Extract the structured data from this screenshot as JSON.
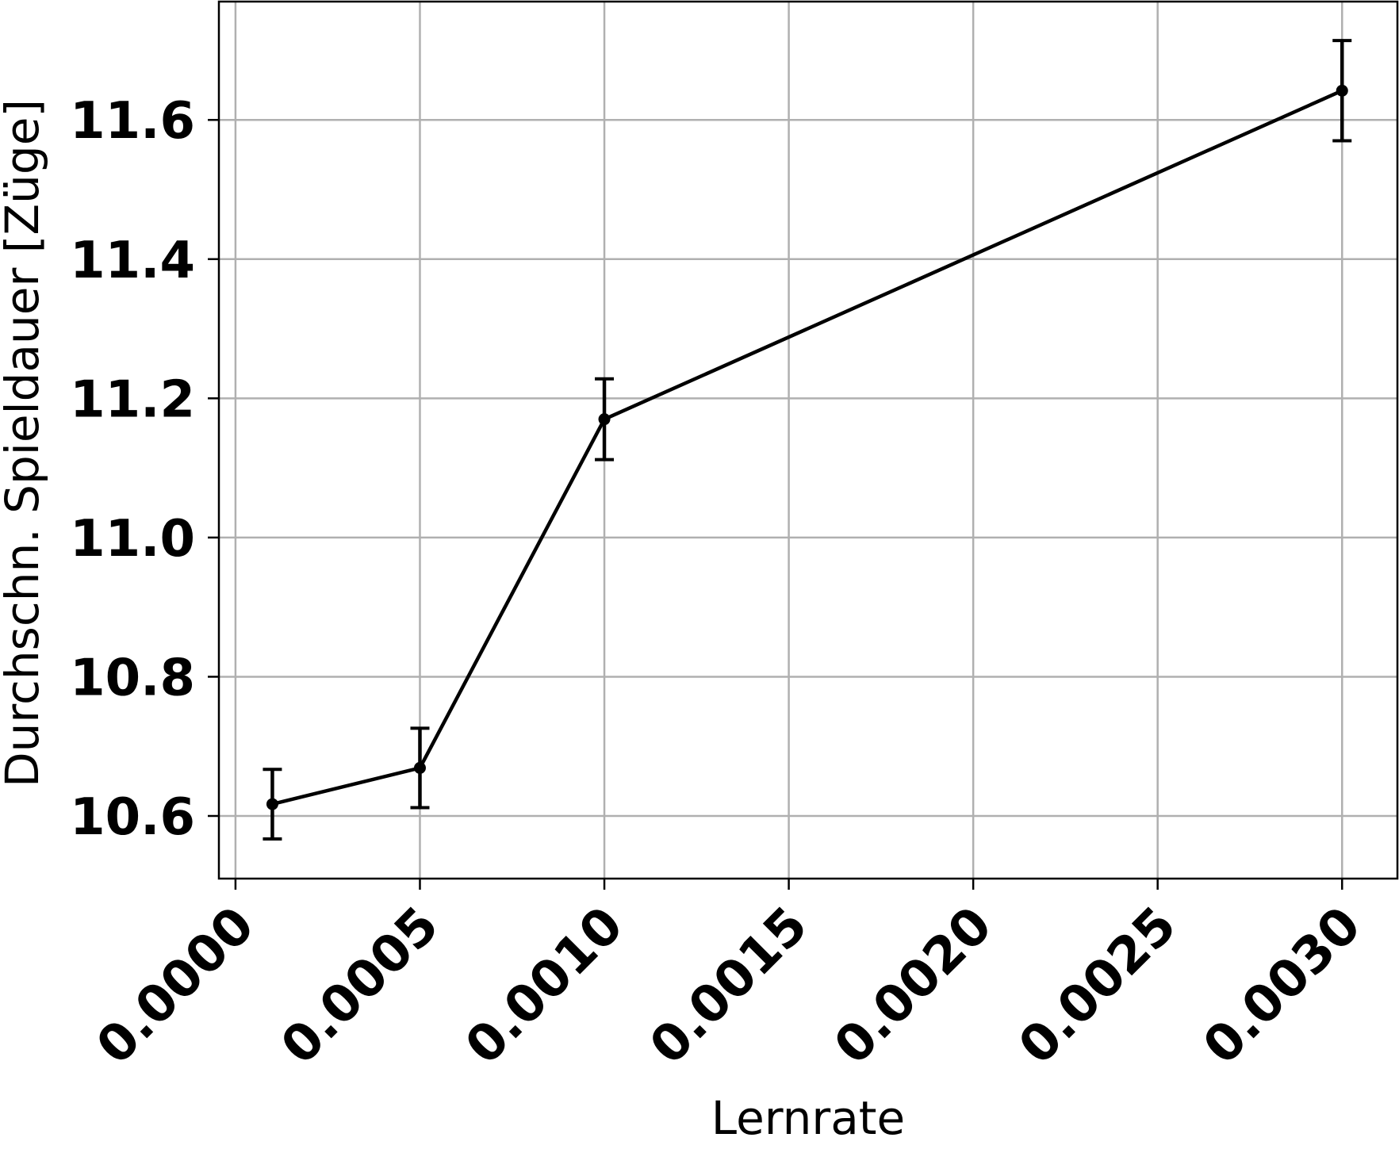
{
  "chart_data": {
    "type": "line",
    "title": "",
    "xlabel": "Lernrate",
    "ylabel": "Durchschn. Spieldauer [Züge]",
    "xlim": [
      -4.5e-05,
      0.00315
    ],
    "ylim": [
      10.51,
      11.77
    ],
    "x_ticks": [
      0.0,
      0.0005,
      0.001,
      0.0015,
      0.002,
      0.0025,
      0.003
    ],
    "x_tick_labels": [
      "0.0000",
      "0.0005",
      "0.0010",
      "0.0015",
      "0.0020",
      "0.0025",
      "0.0030"
    ],
    "y_ticks": [
      10.6,
      10.8,
      11.0,
      11.2,
      11.4,
      11.6
    ],
    "y_tick_labels": [
      "10.6",
      "10.8",
      "11.0",
      "11.2",
      "11.4",
      "11.6"
    ],
    "grid": true,
    "series": [
      {
        "x": [
          0.0001,
          0.0005,
          0.001,
          0.003
        ],
        "y": [
          10.617,
          10.669,
          11.17,
          11.642
        ],
        "yerr": [
          0.05,
          0.057,
          0.058,
          0.072
        ],
        "color": "#000000"
      }
    ]
  }
}
